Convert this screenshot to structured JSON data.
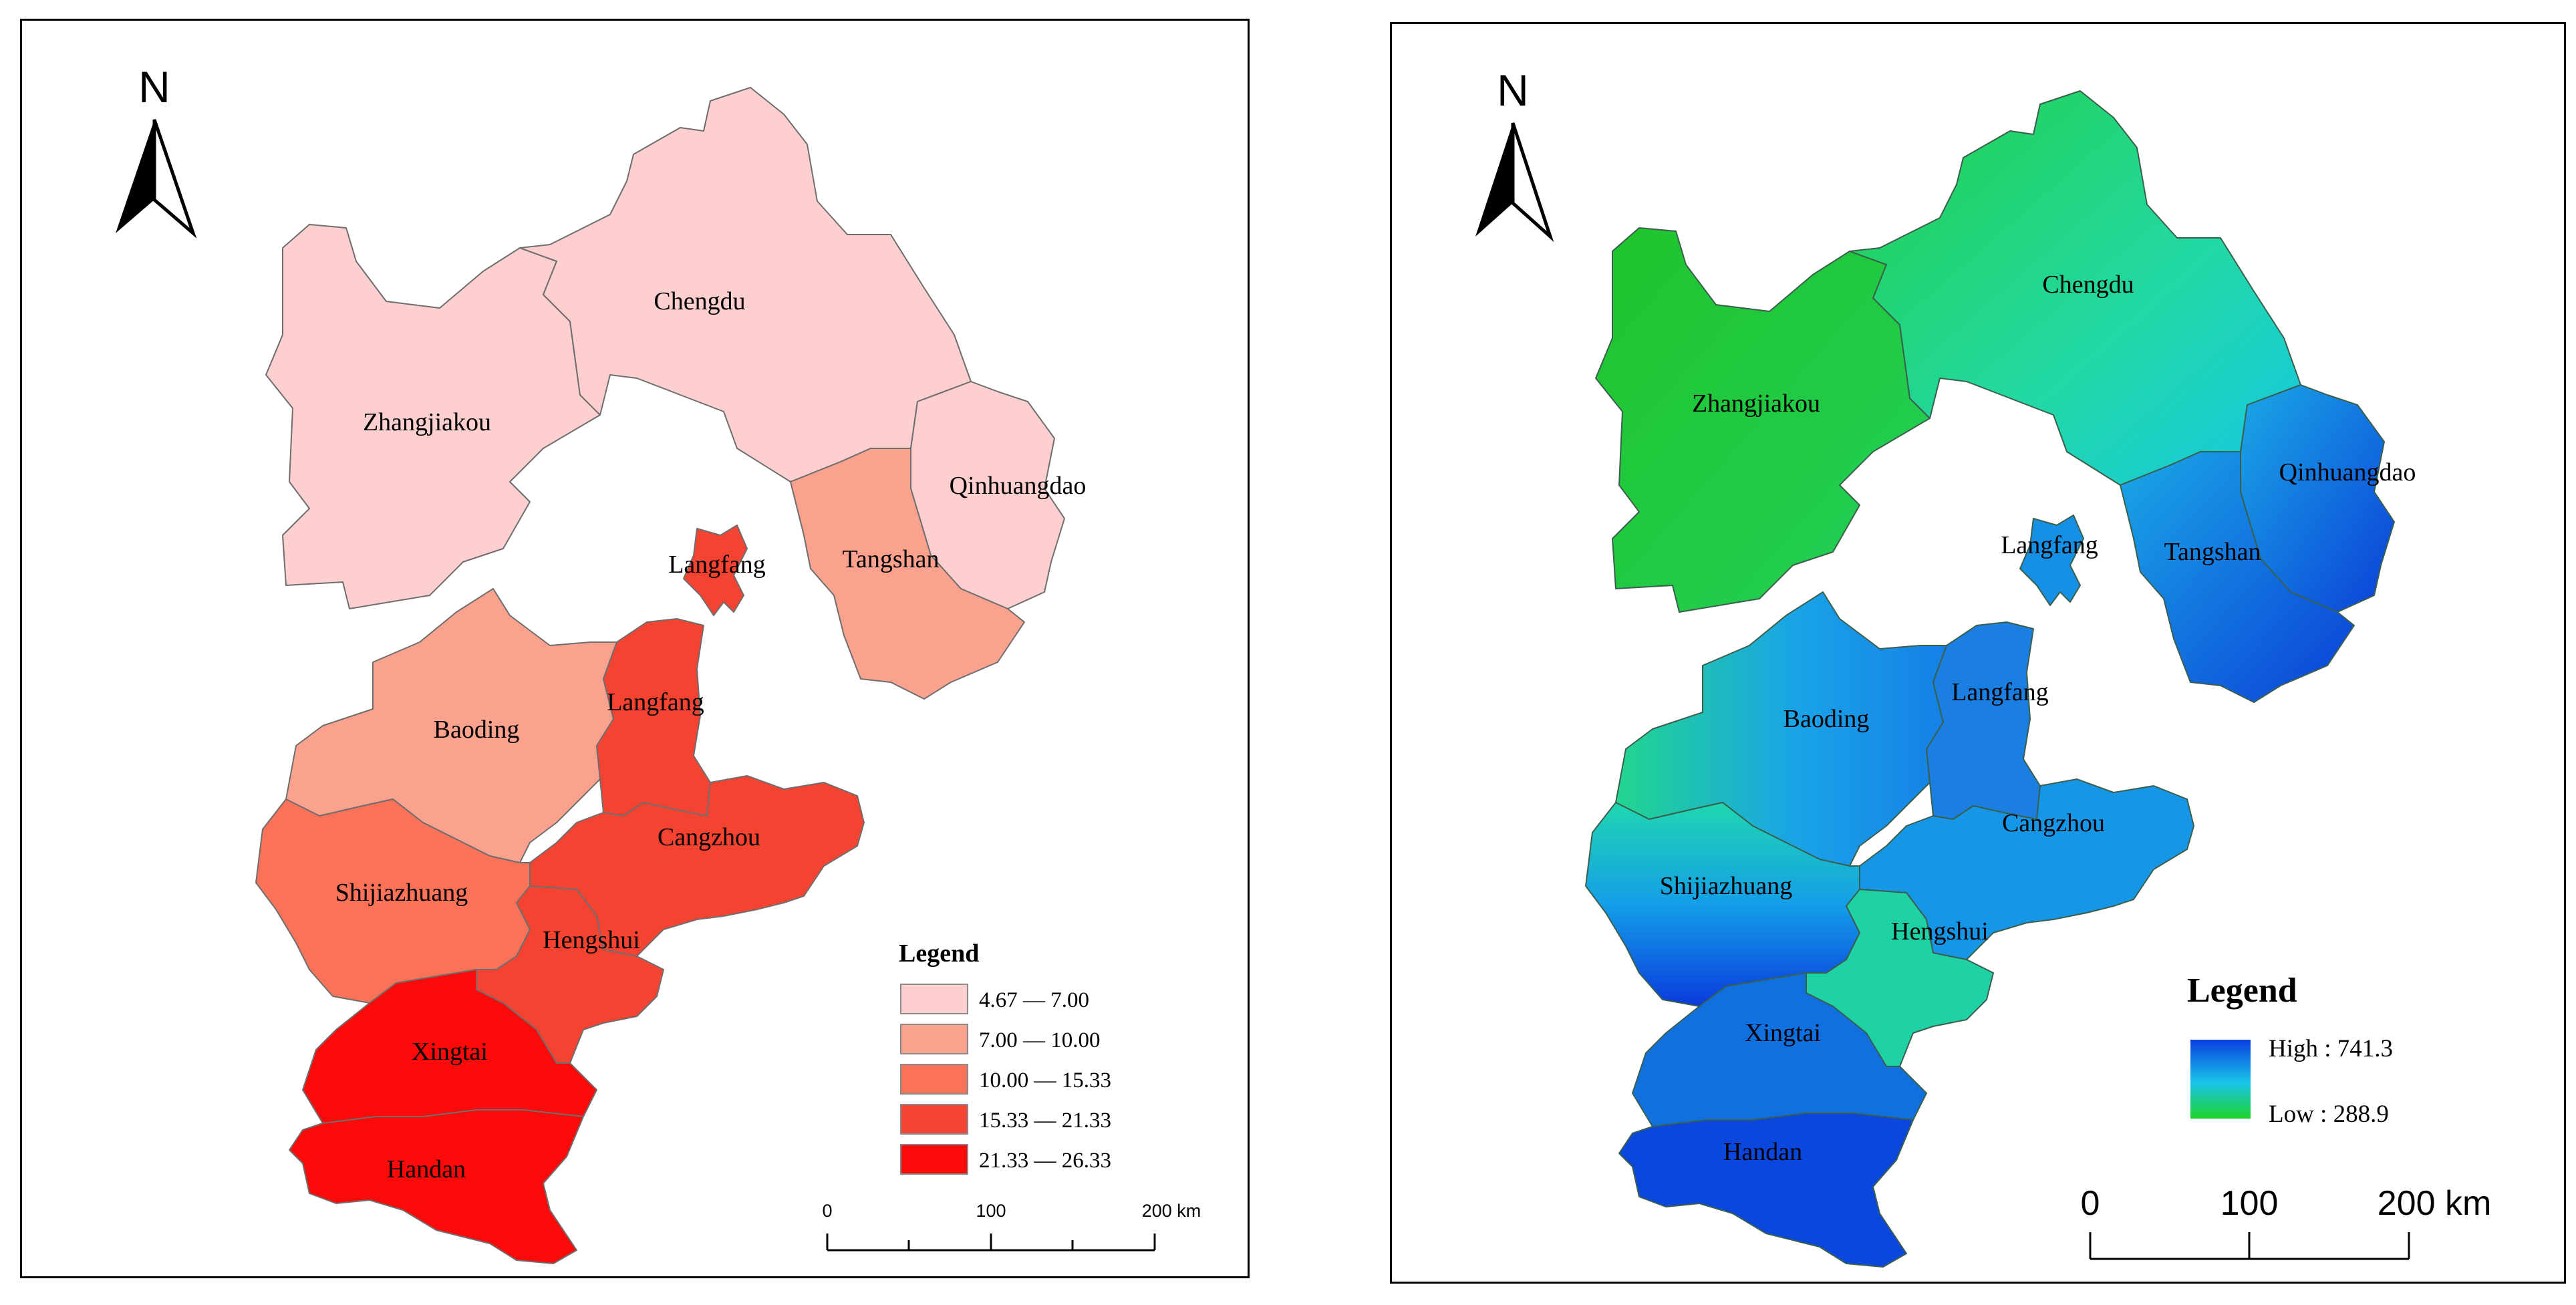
{
  "colors": {
    "class_1": "#fdcfcf",
    "class_2": "#fba28e",
    "class_3": "#fa7258",
    "class_4": "#f54331",
    "class_5": "#fb0a0a",
    "high": "#0a3fe0",
    "low": "#1ed22a"
  },
  "left_map": {
    "north": "N",
    "legend_title": "Legend",
    "legend": [
      {
        "label": "4.67 — 7.00"
      },
      {
        "label": "7.00 — 10.00"
      },
      {
        "label": "10.00 — 15.33"
      },
      {
        "label": "15.33 — 21.33"
      },
      {
        "label": "21.33 — 26.33"
      }
    ],
    "labels": {
      "zhangjiakou": "Zhangjiakou",
      "chengdu": "Chengdu",
      "qinhuangdao": "Qinhuangdao",
      "tangshan": "Tangshan",
      "langfang_north": "Langfang",
      "langfang_south": "Langfang",
      "baoding": "Baoding",
      "cangzhou": "Cangzhou",
      "shijiazhuang": "Shijiazhuang",
      "hengshui": "Hengshui",
      "xingtai": "Xingtai",
      "handan": "Handan"
    },
    "scalebar": {
      "tick_0": "0",
      "tick_1": "100",
      "tick_2": "200 km"
    }
  },
  "right_map": {
    "north": "N",
    "legend_title": "Legend",
    "legend_high": "High : 741.3",
    "legend_low": "Low : 288.9",
    "labels": {
      "zhangjiakou": "Zhangjiakou",
      "chengdu": "Chengdu",
      "qinhuangdao": "Qinhuangdao",
      "tangshan": "Tangshan",
      "langfang_north": "Langfang",
      "langfang_south": "Langfang",
      "baoding": "Baoding",
      "cangzhou": "Cangzhou",
      "shijiazhuang": "Shijiazhuang",
      "hengshui": "Hengshui",
      "xingtai": "Xingtai",
      "handan": "Handan"
    },
    "scalebar": {
      "tick_0": "0",
      "tick_1": "100",
      "tick_2": "200 km"
    }
  }
}
